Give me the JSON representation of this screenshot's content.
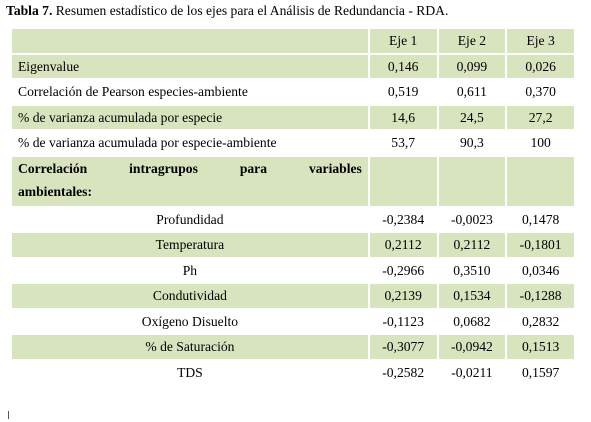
{
  "caption": {
    "label": "Tabla 7.",
    "text": " Resumen estadístico de los ejes para el Análisis de Redundancia - RDA."
  },
  "table": {
    "headers": [
      "",
      "Eje 1",
      "Eje 2",
      "Eje 3"
    ],
    "main_rows": [
      {
        "label": "Eigenvalue",
        "values": [
          "0,146",
          "0,099",
          "0,026"
        ]
      },
      {
        "label": "Correlación de Pearson especies-ambiente",
        "values": [
          "0,519",
          "0,611",
          "0,370"
        ]
      },
      {
        "label": "% de varianza acumulada por especie",
        "values": [
          "14,6",
          "24,5",
          "27,2"
        ]
      },
      {
        "label": "% de varianza acumulada por especie-ambiente",
        "values": [
          "53,7",
          "90,3",
          "100"
        ]
      }
    ],
    "section": {
      "line1": [
        "Correlación",
        "intragrupos",
        "para",
        "variables"
      ],
      "line2": "ambientales:"
    },
    "sub_rows": [
      {
        "label": "Profundidad",
        "values": [
          "-0,2384",
          "-0,0023",
          "0,1478"
        ]
      },
      {
        "label": "Temperatura",
        "values": [
          "0,2112",
          "0,2112",
          "-0,1801"
        ]
      },
      {
        "label": "Ph",
        "values": [
          "-0,2966",
          "0,3510",
          "0,0346"
        ]
      },
      {
        "label": "Condutividad",
        "values": [
          "0,2139",
          "0,1534",
          "-0,1288"
        ]
      },
      {
        "label": "Oxígeno Disuelto",
        "values": [
          "-0,1123",
          "0,0682",
          "0,2832"
        ]
      },
      {
        "label": "% de Saturación",
        "values": [
          "-0,3077",
          "-0,0942",
          "0,1513"
        ]
      },
      {
        "label": "TDS",
        "values": [
          "-0,2582",
          "-0,0211",
          "0,1597"
        ]
      }
    ]
  },
  "colors": {
    "shade": "#d8e4be"
  }
}
